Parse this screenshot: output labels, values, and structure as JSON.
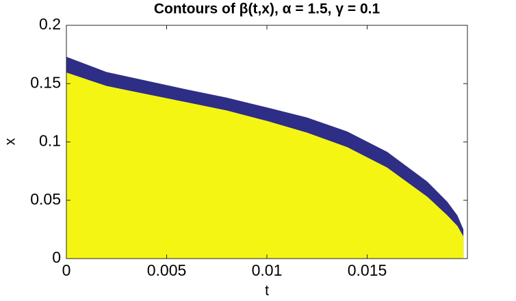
{
  "chart_data": {
    "type": "area",
    "title": "Contours of β(t,x), α = 1.5, γ = 0.1",
    "x_label": "t",
    "y_label": "x",
    "x": [
      0,
      0.002,
      0.004,
      0.006,
      0.008,
      0.01,
      0.012,
      0.014,
      0.016,
      0.018,
      0.019,
      0.0195,
      0.0198
    ],
    "series": [
      {
        "color": "#2e2e87",
        "values": [
          0.173,
          0.16,
          0.1525,
          0.145,
          0.138,
          0.1296,
          0.121,
          0.109,
          0.0915,
          0.066,
          0.0487,
          0.037,
          0.025
        ]
      },
      {
        "color": "#f5f514",
        "values": [
          0.1595,
          0.148,
          0.141,
          0.134,
          0.127,
          0.118,
          0.108,
          0.0956,
          0.078,
          0.053,
          0.037,
          0.028,
          0.019
        ]
      }
    ],
    "xlim": [
      0,
      0.02
    ],
    "xticks": [
      0,
      0.005,
      0.01,
      0.015
    ],
    "ylim": [
      0,
      0.2
    ],
    "yticks": [
      0,
      0.05,
      0.1,
      0.15,
      0.2
    ]
  }
}
